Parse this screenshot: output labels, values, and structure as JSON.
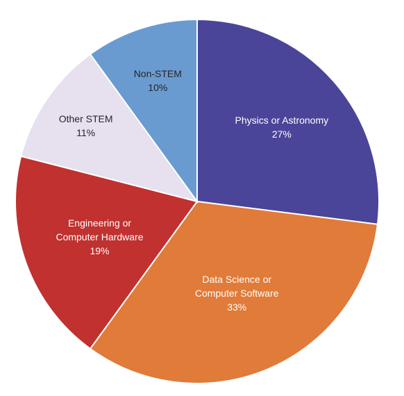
{
  "chart_data": {
    "type": "pie",
    "categories": [
      "Physics or Astronomy",
      "Data Science or Computer Software",
      "Engineering or Computer Hardware",
      "Other STEM",
      "Non-STEM"
    ],
    "values": [
      27,
      33,
      19,
      11,
      10
    ],
    "value_labels": [
      "27%",
      "33%",
      "19%",
      "11%",
      "10%"
    ],
    "colors": [
      "#4a4599",
      "#e07b39",
      "#c0312f",
      "#e6e0ef",
      "#6a9bd0"
    ]
  }
}
